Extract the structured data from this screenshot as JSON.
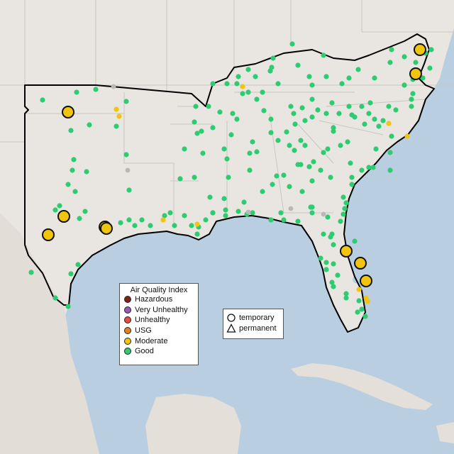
{
  "colors": {
    "land": "#e9e6e1",
    "water": "#b9cee0",
    "boundary": "#000000",
    "state_lines": "#c9c5c0",
    "good": "#2ecc71",
    "moderate": "#f1c40f",
    "usg": "#e67e22",
    "unhealthy": "#e74c3c",
    "very_unhealthy": "#9b59b6",
    "hazardous": "#7b241c"
  },
  "aqi_legend": {
    "title": "Air Quality Index",
    "items": [
      {
        "label": "Hazardous",
        "color": "#7b241c"
      },
      {
        "label": "Very Unhealthy",
        "color": "#9b59b6"
      },
      {
        "label": "Unhealthy",
        "color": "#e74c3c"
      },
      {
        "label": "USG",
        "color": "#e67e22"
      },
      {
        "label": "Moderate",
        "color": "#f1c40f"
      },
      {
        "label": "Good",
        "color": "#2ecc71"
      }
    ]
  },
  "type_legend": {
    "items": [
      {
        "label": "temporary",
        "symbol": "circle"
      },
      {
        "label": "permanent",
        "symbol": "triangle"
      }
    ]
  }
}
